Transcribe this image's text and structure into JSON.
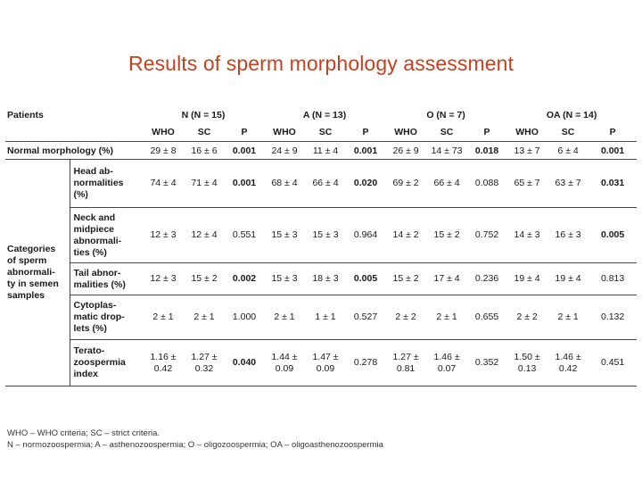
{
  "title": "Results of sperm morphology assessment",
  "header": {
    "patients_label": "Patients",
    "groups": [
      "N (N = 15)",
      "A (N = 13)",
      "O (N = 7)",
      "OA (N = 14)"
    ],
    "subheaders": [
      "WHO",
      "SC",
      "P",
      "WHO",
      "SC",
      "P",
      "WHO",
      "SC",
      "P",
      "WHO",
      "SC",
      "P"
    ]
  },
  "normal_row": {
    "label": "Normal morphology (%)",
    "values": [
      "29 ± 8",
      "16 ± 6",
      "0.001",
      "24 ± 9",
      "11 ± 4",
      "0.001",
      "26 ± 9",
      "14 ± 73",
      "0.018",
      "13 ± 7",
      "6 ± 4",
      "0.001"
    ]
  },
  "category_label": "Categories\nof sperm\nabnormali-\nty in semen\nsamples",
  "rows": [
    {
      "label": "Head ab-\nnormalities\n(%)",
      "values": [
        "74 ± 4",
        "71 ± 4",
        "0.001",
        "68 ± 4",
        "66 ± 4",
        "0.020",
        "69 ± 2",
        "66 ± 4",
        "0.088",
        "65 ± 7",
        "63 ± 7",
        "0.031"
      ]
    },
    {
      "label": "Neck and\nmidpiece\nabnormali-\nties (%)",
      "values": [
        "12 ± 3",
        "12 ± 4",
        "0.551",
        "15 ± 3",
        "15 ± 3",
        "0.964",
        "14 ± 2",
        "15 ± 2",
        "0.752",
        "14 ± 3",
        "16 ± 3",
        "0.005"
      ]
    },
    {
      "label": "Tail abnor-\nmalities (%)",
      "values": [
        "12 ± 3",
        "15 ± 2",
        "0.002",
        "15 ± 3",
        "18 ± 3",
        "0.005",
        "15 ± 2",
        "17 ± 4",
        "0.236",
        "19 ± 4",
        "19 ± 4",
        "0.813"
      ]
    },
    {
      "label": "Cytoplas-\nmatic drop-\nlets (%)",
      "values": [
        "2 ± 1",
        "2 ± 1",
        "1.000",
        "2 ± 1",
        "1 ± 1",
        "0.527",
        "2 ± 2",
        "2 ± 1",
        "0.655",
        "2 ± 2",
        "2 ± 1",
        "0.132"
      ]
    },
    {
      "label": "Terato-\nzoospermia\nindex",
      "values": [
        "1.16 ±\n0.42",
        "1.27 ±\n0.32",
        "0.040",
        "1.44 ±\n0.09",
        "1.47 ±\n0.09",
        "0.278",
        "1.27 ±\n0.81",
        "1.46 ±\n0.07",
        "0.352",
        "1.50 ±\n0.13",
        "1.46 ±\n0.42",
        "0.451"
      ]
    }
  ],
  "bold_p_values": [
    "0.001",
    "0.018",
    "0.020",
    "0.031",
    "0.005",
    "0.002",
    "0.040"
  ],
  "footnotes": [
    "WHO – WHO criteria; SC – strict criteria.",
    "N – normozoospermia; A – asthenozoospermia; O – oligozoospermia; OA – oligoasthenozoospermia"
  ]
}
